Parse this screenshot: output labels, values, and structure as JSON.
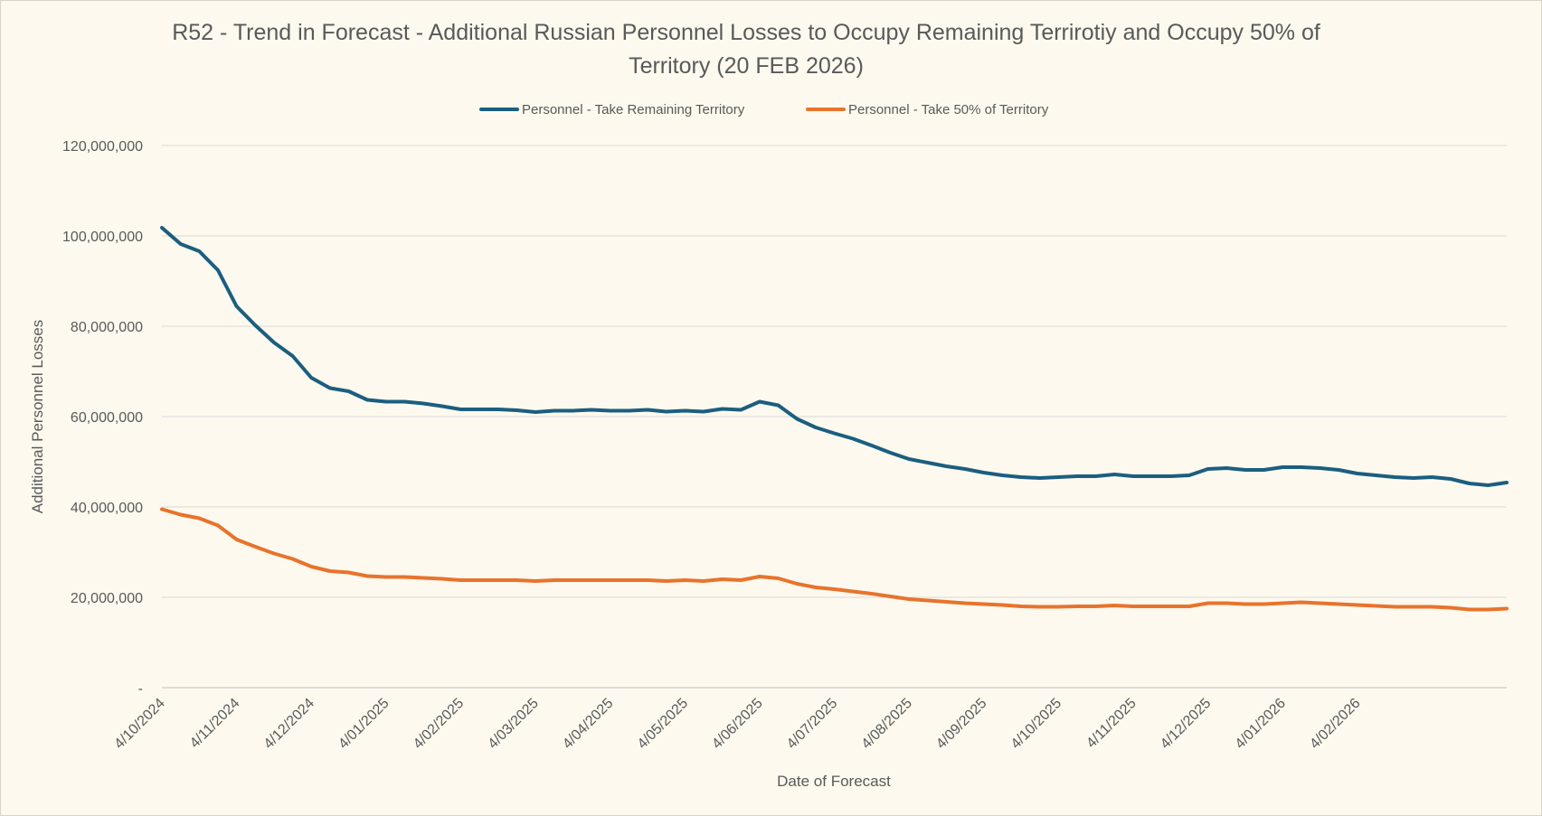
{
  "chart_data": {
    "type": "line",
    "title": "R52 - Trend in Forecast - Additional Russian Personnel Losses to Occupy Remaining Terrirotiy and Occupy 50% of Territory  (20 FEB 2026)",
    "xlabel": "Date of Forecast",
    "ylabel": "Additional Personnel Losses",
    "ylim": [
      0,
      120000000
    ],
    "y_ticks": [
      "-",
      "20,000,000",
      "40,000,000",
      "60,000,000",
      "80,000,000",
      "100,000,000",
      "120,000,000"
    ],
    "x_tick_labels": [
      "4/10/2024",
      "4/11/2024",
      "4/12/2024",
      "4/01/2025",
      "4/02/2025",
      "4/03/2025",
      "4/04/2025",
      "4/05/2025",
      "4/06/2025",
      "4/07/2025",
      "4/08/2025",
      "4/09/2025",
      "4/10/2025",
      "4/11/2025",
      "4/12/2025",
      "4/01/2026",
      "4/02/2026"
    ],
    "legend_position": "top",
    "grid": true,
    "series": [
      {
        "name": "Personnel - Take Remaining Territory",
        "color": "#1b5e80",
        "values": [
          101800000,
          98200000,
          96600000,
          92400000,
          84400000,
          80200000,
          76400000,
          73400000,
          68600000,
          66300000,
          65600000,
          63700000,
          63300000,
          63300000,
          62900000,
          62300000,
          61600000,
          61600000,
          61600000,
          61400000,
          61000000,
          61300000,
          61300000,
          61500000,
          61300000,
          61300000,
          61500000,
          61100000,
          61300000,
          61100000,
          61700000,
          61500000,
          63300000,
          62500000,
          59500000,
          57600000,
          56300000,
          55100000,
          53600000,
          52000000,
          50600000,
          49800000,
          49000000,
          48400000,
          47600000,
          47000000,
          46600000,
          46400000,
          46600000,
          46800000,
          46800000,
          47200000,
          46800000,
          46800000,
          46800000,
          47000000,
          48400000,
          48600000,
          48200000,
          48200000,
          48800000,
          48800000,
          48600000,
          48200000,
          47400000,
          47000000,
          46600000,
          46400000,
          46600000,
          46200000,
          45200000,
          44800000,
          45400000
        ]
      },
      {
        "name": "Personnel - Take 50% of Territory",
        "color": "#e8732c",
        "values": [
          39500000,
          38300000,
          37500000,
          35900000,
          32800000,
          31200000,
          29700000,
          28500000,
          26800000,
          25800000,
          25500000,
          24700000,
          24500000,
          24500000,
          24300000,
          24100000,
          23800000,
          23800000,
          23800000,
          23800000,
          23600000,
          23800000,
          23800000,
          23800000,
          23800000,
          23800000,
          23800000,
          23600000,
          23800000,
          23600000,
          24000000,
          23800000,
          24600000,
          24200000,
          23000000,
          22200000,
          21800000,
          21300000,
          20800000,
          20200000,
          19600000,
          19300000,
          19000000,
          18700000,
          18500000,
          18300000,
          18000000,
          17900000,
          17900000,
          18000000,
          18000000,
          18200000,
          18000000,
          18000000,
          18000000,
          18000000,
          18700000,
          18700000,
          18500000,
          18500000,
          18700000,
          18900000,
          18700000,
          18500000,
          18300000,
          18100000,
          17900000,
          17900000,
          17900000,
          17700000,
          17300000,
          17300000,
          17500000
        ]
      }
    ]
  }
}
